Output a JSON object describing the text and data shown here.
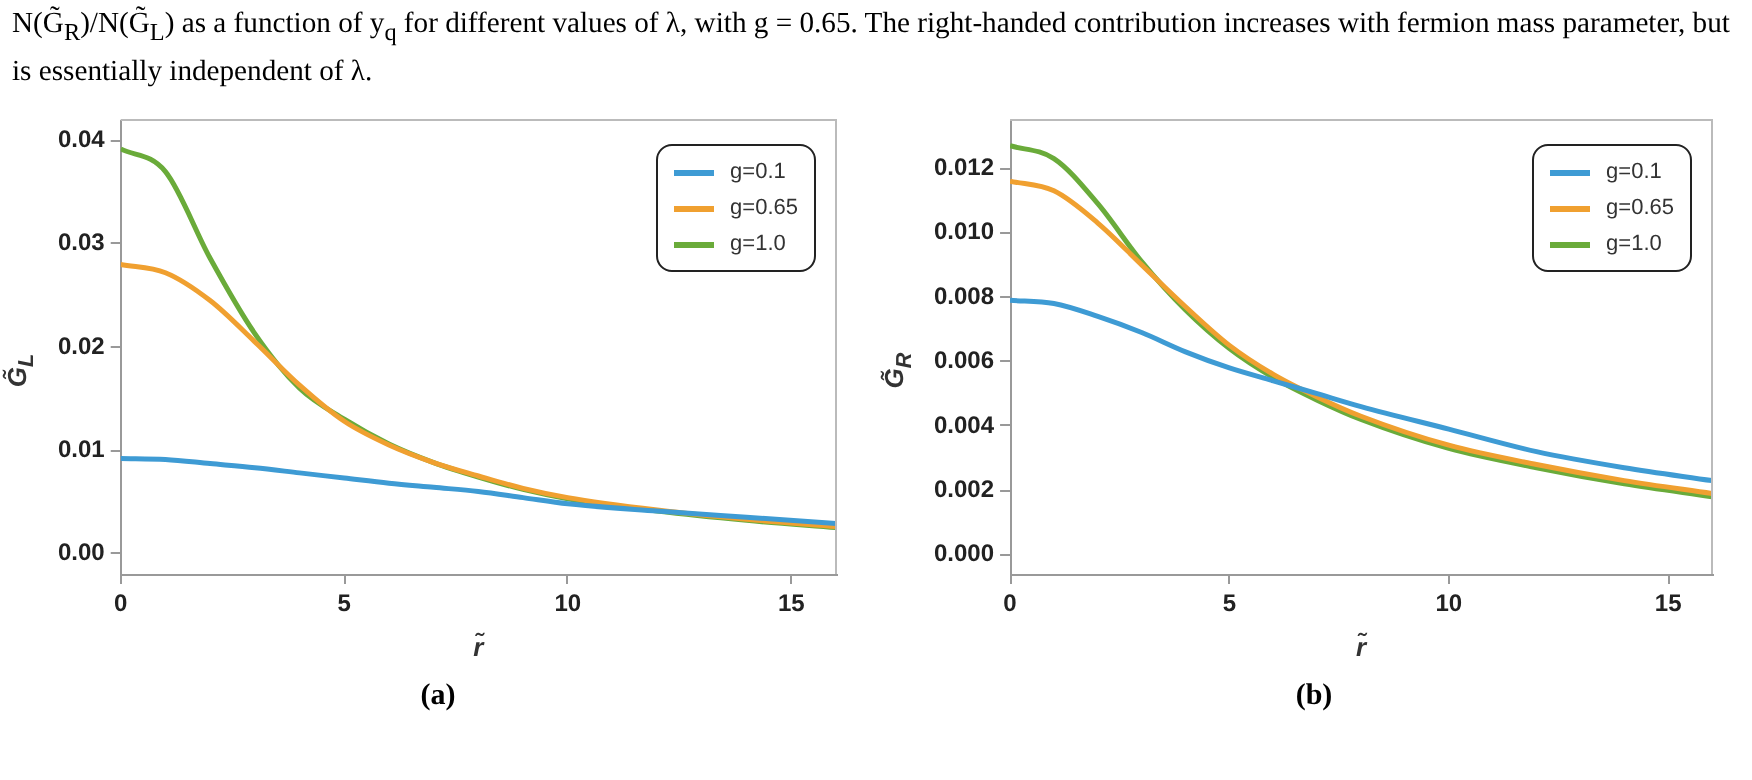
{
  "chart_data": [
    {
      "type": "line",
      "annotations": [
        "N(G̃$_{R}$)/N(G̃$_{L}$) as a function of y$_{q}$ for different values of λ, with g = 0.65. The right-handed contribution increases with fermion mass parameter, but is essentially independent of λ."
      ],
      "subtitle": "(a)",
      "xlabel": "r̃",
      "ylabel": "G̃$_{L}$",
      "x": [
        0,
        1,
        2,
        3,
        4,
        5,
        6,
        7,
        8,
        9,
        10,
        12,
        14,
        16
      ],
      "xlim": [
        0,
        16
      ],
      "xticks": [
        0,
        5,
        10,
        15
      ],
      "ylim": [
        -0.002,
        0.042
      ],
      "yticks": [
        {
          "value": 0,
          "label": "0.00"
        },
        {
          "value": 0.01,
          "label": "0.01"
        },
        {
          "value": 0.02,
          "label": "0.02"
        },
        {
          "value": 0.03,
          "label": "0.03"
        },
        {
          "value": 0.04,
          "label": "0.04"
        }
      ],
      "grid": false,
      "legend": "top right",
      "marker": "none",
      "series": [
        {
          "name": "g=0.1",
          "color": "#3e9bd4",
          "values": [
            0.0092,
            0.0091,
            0.0087,
            0.0083,
            0.0078,
            0.0073,
            0.0068,
            0.0064,
            0.006,
            0.0054,
            0.0048,
            0.0041,
            0.0035,
            0.0029
          ]
        },
        {
          "name": "g=0.65",
          "color": "#f0a030",
          "values": [
            0.028,
            0.0272,
            0.0245,
            0.0205,
            0.0163,
            0.0128,
            0.0105,
            0.0088,
            0.0075,
            0.0063,
            0.0054,
            0.0042,
            0.0033,
            0.0026
          ]
        },
        {
          "name": "g=1.0",
          "color": "#6aab3a",
          "values": [
            0.0392,
            0.037,
            0.0286,
            0.0213,
            0.016,
            0.013,
            0.0106,
            0.0088,
            0.0074,
            0.0062,
            0.0053,
            0.0041,
            0.0032,
            0.0025
          ]
        }
      ]
    },
    {
      "type": "line",
      "subtitle": "(b)",
      "xlabel": "r̃",
      "ylabel": "G̃$_{R}$",
      "x": [
        0,
        1,
        2,
        3,
        4,
        5,
        6,
        7,
        8,
        10,
        12,
        14,
        16
      ],
      "xlim": [
        0,
        16
      ],
      "xticks": [
        0,
        5,
        10,
        15
      ],
      "ylim": [
        -0.0006,
        0.0135
      ],
      "yticks": [
        {
          "value": 0,
          "label": "0.000"
        },
        {
          "value": 0.002,
          "label": "0.002"
        },
        {
          "value": 0.004,
          "label": "0.004"
        },
        {
          "value": 0.006,
          "label": "0.006"
        },
        {
          "value": 0.008,
          "label": "0.008"
        },
        {
          "value": 0.01,
          "label": "0.010"
        },
        {
          "value": 0.012,
          "label": "0.012"
        }
      ],
      "grid": false,
      "legend": "top right",
      "marker": "none",
      "series": [
        {
          "name": "g=0.1",
          "color": "#3e9bd4",
          "values": [
            0.0079,
            0.0078,
            0.0074,
            0.0069,
            0.0063,
            0.0058,
            0.0054,
            0.005,
            0.0046,
            0.0039,
            0.0032,
            0.0027,
            0.0023
          ]
        },
        {
          "name": "g=0.65",
          "color": "#f0a030",
          "values": [
            0.0116,
            0.0113,
            0.0103,
            0.009,
            0.0077,
            0.0065,
            0.0056,
            0.0049,
            0.0043,
            0.0034,
            0.0028,
            0.0023,
            0.0019
          ]
        },
        {
          "name": "g=1.0",
          "color": "#6aab3a",
          "values": [
            0.0127,
            0.0123,
            0.0109,
            0.0091,
            0.0076,
            0.0064,
            0.0055,
            0.0048,
            0.0042,
            0.0033,
            0.0027,
            0.0022,
            0.0018
          ]
        }
      ]
    }
  ]
}
